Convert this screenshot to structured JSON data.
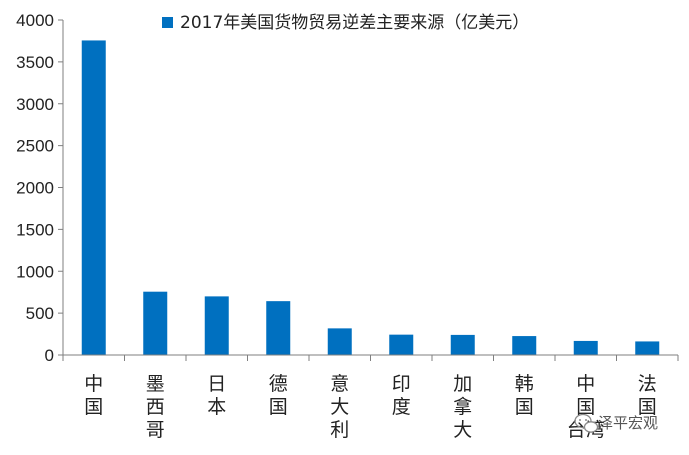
{
  "chart_data": {
    "type": "bar",
    "categories": [
      "中国",
      "墨西哥",
      "日本",
      "德国",
      "意大利",
      "印度",
      "加拿大",
      "韩国",
      "中国台湾",
      "法国"
    ],
    "values": [
      3756,
      756,
      700,
      643,
      318,
      243,
      240,
      226,
      168,
      162
    ],
    "series": [
      {
        "name": "2017年美国货物贸易逆差主要来源（亿美元）",
        "values": [
          3756,
          756,
          700,
          643,
          318,
          243,
          240,
          226,
          168,
          162
        ],
        "color": "#0070C0"
      }
    ],
    "ylim": [
      0,
      4000
    ],
    "yticks": [
      0,
      500,
      1000,
      1500,
      2000,
      2500,
      3000,
      3500,
      4000
    ],
    "title": "",
    "xlabel": "",
    "ylabel": "",
    "legend": "top-right",
    "grid": false
  },
  "legend_label": "2017年美国货物贸易逆差主要来源（亿美元）",
  "watermark": "泽平宏观",
  "colors": {
    "bar": "#0070C0",
    "axis": "#7f7f7f"
  }
}
